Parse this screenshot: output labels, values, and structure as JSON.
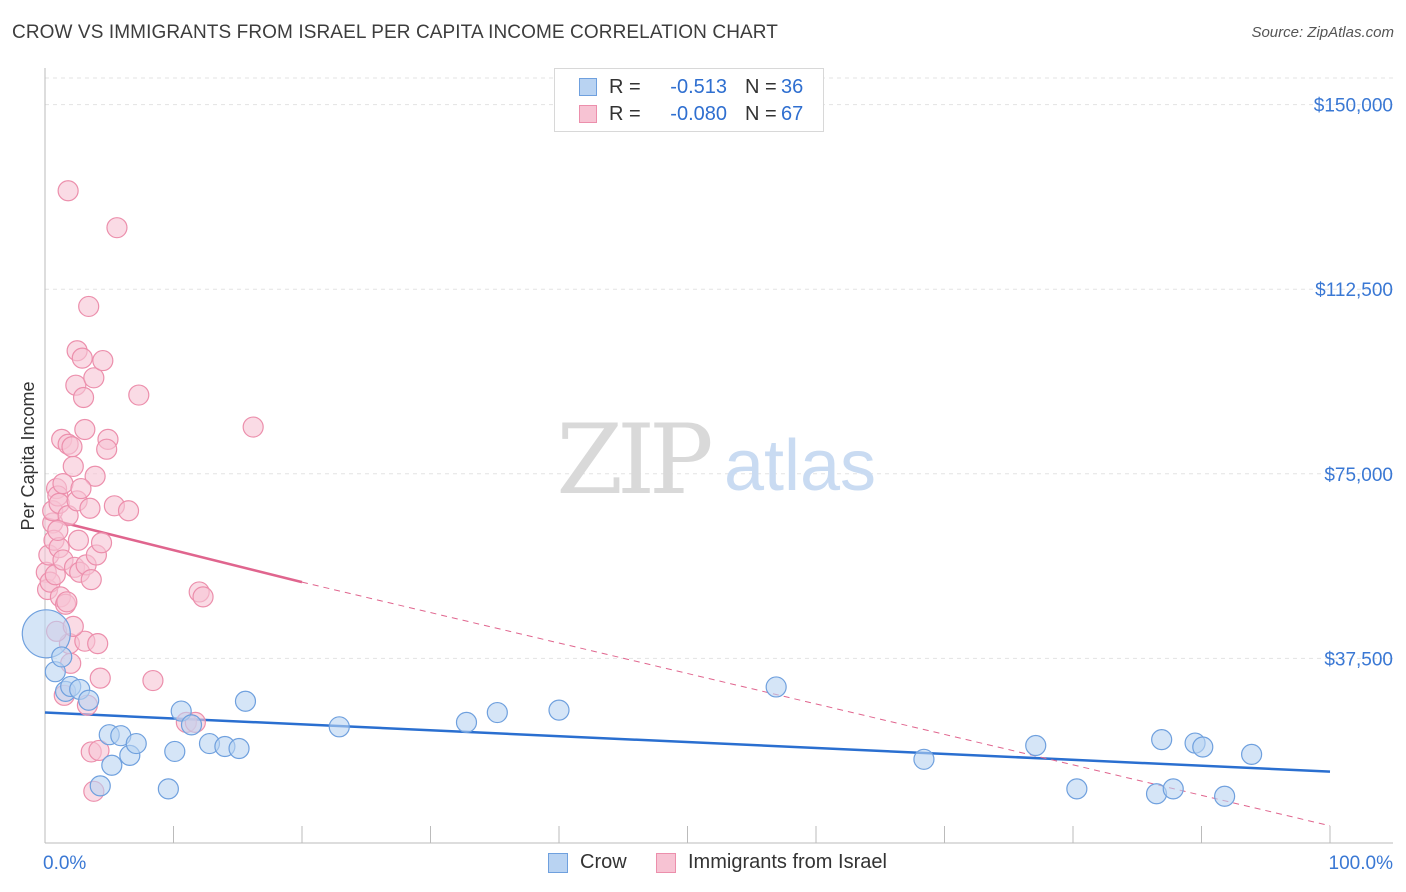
{
  "title": "CROW VS IMMIGRANTS FROM ISRAEL PER CAPITA INCOME CORRELATION CHART",
  "source": "Source: ZipAtlas.com",
  "watermark": {
    "zip": "ZIP",
    "atlas": "atlas"
  },
  "legend_top": {
    "rows": [
      {
        "r_label": "R =",
        "r_value": "-0.513",
        "n_label": "N =",
        "n_value": "36"
      },
      {
        "r_label": "R =",
        "r_value": "-0.080",
        "n_label": "N =",
        "n_value": "67"
      }
    ]
  },
  "legend_bottom": {
    "crow": "Crow",
    "israel": "Immigrants from Israel"
  },
  "colors": {
    "crow_fill": "#b9d3f2",
    "crow_stroke": "#6fa0de",
    "crow_line": "#2a6fd0",
    "israel_fill": "#f7c3d3",
    "israel_stroke": "#ec8fac",
    "israel_line": "#e0658e",
    "axis_text": "#3a78d4",
    "grid": "#e3e3e3"
  },
  "chart_data": {
    "type": "scatter",
    "title": "CROW VS IMMIGRANTS FROM ISRAEL PER CAPITA INCOME CORRELATION CHART",
    "xlabel": "",
    "ylabel": "Per Capita Income",
    "xlim": [
      0,
      100
    ],
    "ylim": [
      0,
      155000
    ],
    "x_tick_labels": [
      "0.0%",
      "100.0%"
    ],
    "y_ticks": [
      37500,
      75000,
      112500,
      150000
    ],
    "y_tick_labels": [
      "$37,500",
      "$75,000",
      "$112,500",
      "$150,000"
    ],
    "series": [
      {
        "name": "Crow",
        "color": "#6fa0de",
        "points": [
          [
            0.1,
            42500,
            24
          ],
          [
            0.8,
            34800,
            10
          ],
          [
            1.3,
            37800,
            10
          ],
          [
            1.6,
            30800,
            10
          ],
          [
            2.0,
            31800,
            10
          ],
          [
            2.7,
            31200,
            10
          ],
          [
            3.4,
            29000,
            10
          ],
          [
            5.0,
            22000,
            10
          ],
          [
            5.2,
            15800,
            10
          ],
          [
            4.3,
            11600,
            10
          ],
          [
            5.9,
            21800,
            10
          ],
          [
            6.6,
            17800,
            10
          ],
          [
            7.1,
            20200,
            10
          ],
          [
            9.6,
            11000,
            10
          ],
          [
            10.1,
            18600,
            10
          ],
          [
            10.6,
            26800,
            10
          ],
          [
            11.4,
            24000,
            10
          ],
          [
            12.8,
            20200,
            10
          ],
          [
            14.0,
            19600,
            10
          ],
          [
            15.1,
            19200,
            10
          ],
          [
            15.6,
            28800,
            10
          ],
          [
            22.9,
            23600,
            10
          ],
          [
            32.8,
            24500,
            10
          ],
          [
            35.2,
            26500,
            10
          ],
          [
            40.0,
            27000,
            10
          ],
          [
            56.9,
            31700,
            10
          ],
          [
            68.4,
            17000,
            10
          ],
          [
            77.1,
            19800,
            10
          ],
          [
            80.3,
            11000,
            10
          ],
          [
            86.9,
            21000,
            10
          ],
          [
            86.5,
            10000,
            10
          ],
          [
            87.8,
            11000,
            10
          ],
          [
            89.5,
            20300,
            10
          ],
          [
            90.1,
            19500,
            10
          ],
          [
            91.8,
            9500,
            10
          ],
          [
            93.9,
            18000,
            10
          ]
        ]
      },
      {
        "name": "Immigrants from Israel",
        "color": "#ec8fac",
        "points": [
          [
            0.1,
            55000,
            10
          ],
          [
            0.2,
            51500,
            10
          ],
          [
            0.3,
            58500,
            10
          ],
          [
            0.4,
            53000,
            10
          ],
          [
            0.6,
            65000,
            10
          ],
          [
            0.6,
            67500,
            10
          ],
          [
            0.7,
            61500,
            10
          ],
          [
            0.8,
            54500,
            10
          ],
          [
            0.9,
            72000,
            10
          ],
          [
            1.0,
            70500,
            10
          ],
          [
            1.1,
            69000,
            10
          ],
          [
            1.1,
            60000,
            10
          ],
          [
            1.2,
            50000,
            10
          ],
          [
            1.3,
            82000,
            10
          ],
          [
            1.4,
            73000,
            10
          ],
          [
            1.4,
            57500,
            10
          ],
          [
            1.6,
            48500,
            10
          ],
          [
            1.8,
            81000,
            10
          ],
          [
            1.8,
            66500,
            10
          ],
          [
            1.9,
            40500,
            10
          ],
          [
            2.0,
            36500,
            10
          ],
          [
            2.1,
            80500,
            10
          ],
          [
            2.2,
            76500,
            10
          ],
          [
            2.3,
            56000,
            10
          ],
          [
            1.7,
            49000,
            10
          ],
          [
            2.5,
            69500,
            10
          ],
          [
            2.6,
            61500,
            10
          ],
          [
            2.4,
            93000,
            10
          ],
          [
            2.5,
            100000,
            10
          ],
          [
            2.7,
            55000,
            10
          ],
          [
            2.9,
            98500,
            10
          ],
          [
            3.0,
            90500,
            10
          ],
          [
            3.1,
            84000,
            10
          ],
          [
            3.1,
            41000,
            10
          ],
          [
            3.2,
            56500,
            10
          ],
          [
            3.4,
            109000,
            10
          ],
          [
            3.5,
            68000,
            10
          ],
          [
            3.6,
            18500,
            10
          ],
          [
            3.8,
            94500,
            10
          ],
          [
            3.8,
            10500,
            10
          ],
          [
            4.0,
            58500,
            10
          ],
          [
            3.9,
            74500,
            10
          ],
          [
            4.2,
            18800,
            10
          ],
          [
            4.5,
            98000,
            10
          ],
          [
            4.3,
            33500,
            10
          ],
          [
            4.9,
            82000,
            10
          ],
          [
            4.8,
            80000,
            10
          ],
          [
            5.4,
            68500,
            10
          ],
          [
            5.6,
            125000,
            10
          ],
          [
            6.5,
            67500,
            10
          ],
          [
            7.3,
            91000,
            10
          ],
          [
            8.4,
            33000,
            10
          ],
          [
            1.8,
            132500,
            10
          ],
          [
            11.0,
            24500,
            10
          ],
          [
            11.7,
            24500,
            10
          ],
          [
            12.0,
            51000,
            10
          ],
          [
            12.3,
            50000,
            10
          ],
          [
            16.2,
            84500,
            10
          ],
          [
            4.1,
            40500,
            10
          ],
          [
            1.5,
            30000,
            10
          ],
          [
            0.9,
            43000,
            10
          ],
          [
            3.3,
            28000,
            10
          ],
          [
            2.8,
            72000,
            10
          ],
          [
            4.4,
            61000,
            10
          ],
          [
            2.2,
            44000,
            10
          ],
          [
            1.0,
            63500,
            10
          ],
          [
            3.6,
            53500,
            10
          ]
        ]
      }
    ],
    "trendlines": [
      {
        "series": "Crow",
        "x": [
          0,
          100
        ],
        "y": [
          26500,
          14500
        ],
        "style": "solid"
      },
      {
        "series": "Immigrants from Israel",
        "x": [
          0,
          20
        ],
        "y": [
          66000,
          53000
        ],
        "style": "solid"
      },
      {
        "series": "Immigrants from Israel",
        "x": [
          20,
          100
        ],
        "y": [
          53000,
          3500
        ],
        "style": "dashed"
      }
    ]
  }
}
